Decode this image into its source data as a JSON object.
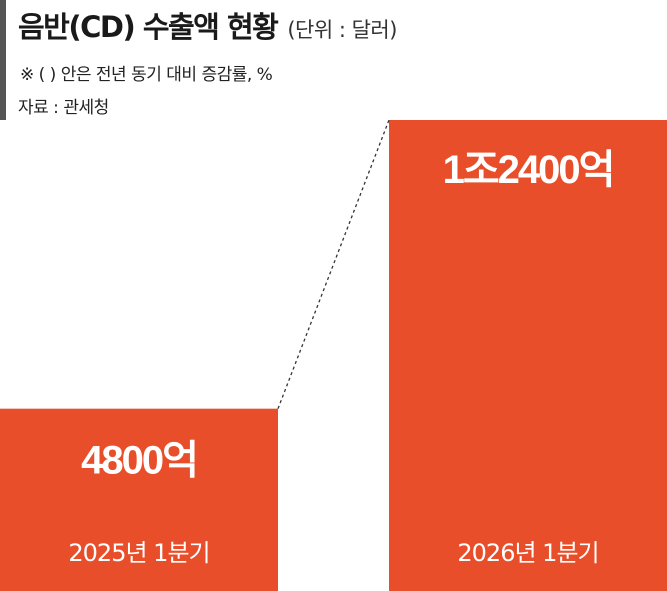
{
  "header": {
    "title": "음반(CD) 수출액 현황",
    "unit": "(단위 : 달러)",
    "note": "※ (  ) 안은 전년 동기 대비 증감률, %",
    "source": "자료 : 관세청"
  },
  "colors": {
    "bar": "#e84e29",
    "accent": "#555555",
    "connector": "#333333"
  },
  "chart_data": {
    "type": "bar",
    "categories": [
      "2025년 1분기",
      "2026년 1분기"
    ],
    "values": [
      480000000000,
      1240000000000
    ],
    "value_labels": [
      "4800억",
      "1조2400억"
    ],
    "ylim": [
      0,
      1240000000000
    ],
    "grid": false,
    "legend": "none"
  }
}
